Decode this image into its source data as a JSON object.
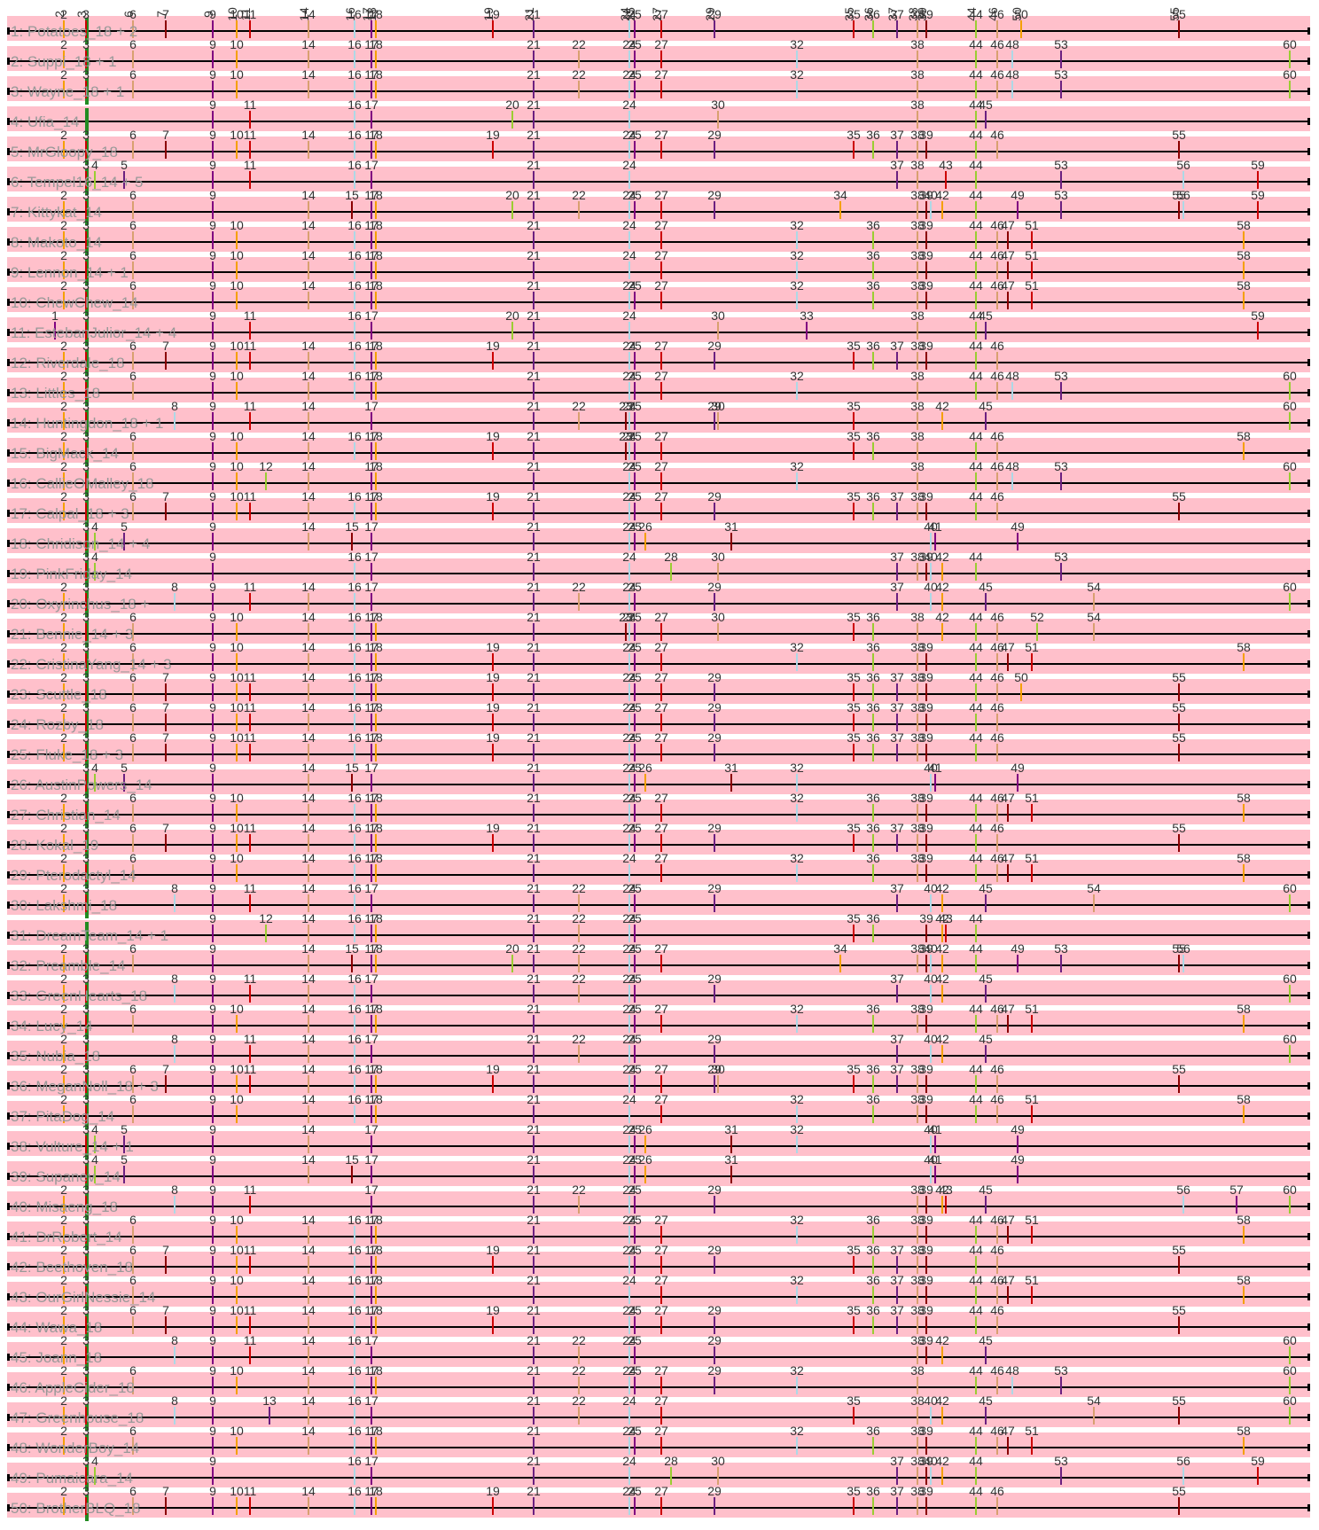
{
  "colors": {
    "band": "#ffc0cb",
    "line": "#000000",
    "gap": "#ffffff",
    "palette": [
      "#cc0000",
      "#f4a000",
      "#800080",
      "#add8e6",
      "#8b0000",
      "#d8a070",
      "#6b2080",
      "#9acd32"
    ],
    "accent_green": "#228b22"
  },
  "chart_data": {
    "type": "track-diagram",
    "rows": [
      {
        "label": "1: Potatoes_18 + 2",
        "ticks": [
          2,
          3,
          6,
          7,
          9,
          10,
          11,
          14,
          16,
          17,
          18,
          19,
          21,
          24,
          25,
          27,
          29,
          35,
          36,
          37,
          38,
          39,
          44,
          46,
          50,
          55
        ]
      },
      {
        "label": "2: Suppi_18 + 1",
        "ticks": [
          2,
          3,
          6,
          9,
          10,
          14,
          16,
          17,
          18,
          21,
          22,
          24,
          25,
          27,
          32,
          38,
          44,
          46,
          48,
          53,
          60
        ]
      },
      {
        "label": "3: Wayne_18 + 1",
        "ticks": [
          2,
          3,
          6,
          9,
          10,
          14,
          16,
          17,
          18,
          21,
          22,
          24,
          25,
          27,
          32,
          38,
          44,
          46,
          48,
          53,
          60
        ]
      },
      {
        "label": "4: Ufia_14",
        "ticks": [
          9,
          11,
          16,
          17,
          20,
          21,
          24,
          30,
          38,
          44,
          45
        ]
      },
      {
        "label": "5: MrGloopy_18",
        "ticks": [
          2,
          3,
          6,
          7,
          9,
          10,
          11,
          14,
          16,
          17,
          18,
          19,
          21,
          24,
          25,
          27,
          29,
          35,
          36,
          37,
          38,
          39,
          44,
          46,
          55
        ]
      },
      {
        "label": "6: Tempel16_14 + 5",
        "ticks": [
          3,
          4,
          5,
          9,
          11,
          16,
          17,
          21,
          24,
          37,
          38,
          43,
          44,
          53,
          56,
          59
        ]
      },
      {
        "label": "7: Kittykat_14",
        "ticks": [
          2,
          3,
          6,
          9,
          14,
          15,
          17,
          18,
          20,
          21,
          22,
          24,
          25,
          27,
          29,
          34,
          38,
          39,
          40,
          42,
          44,
          49,
          53,
          55,
          56,
          59
        ]
      },
      {
        "label": "8: Makoto_14",
        "ticks": [
          2,
          3,
          6,
          9,
          10,
          14,
          16,
          17,
          18,
          21,
          24,
          27,
          32,
          36,
          38,
          39,
          44,
          46,
          47,
          51,
          58
        ]
      },
      {
        "label": "9: Lennon_14 + 1",
        "ticks": [
          2,
          3,
          6,
          9,
          10,
          14,
          16,
          17,
          18,
          21,
          24,
          27,
          32,
          36,
          38,
          39,
          44,
          46,
          47,
          51,
          58
        ]
      },
      {
        "label": "10: ChewChew_14",
        "ticks": [
          2,
          3,
          6,
          9,
          10,
          14,
          16,
          17,
          18,
          21,
          24,
          25,
          27,
          32,
          36,
          38,
          39,
          44,
          46,
          47,
          51,
          58
        ]
      },
      {
        "label": "11: EstebanJulior_14 + 4",
        "ticks": [
          1,
          3,
          9,
          11,
          16,
          17,
          20,
          21,
          24,
          30,
          33,
          38,
          44,
          45,
          59
        ]
      },
      {
        "label": "12: Riverdale_18",
        "ticks": [
          2,
          3,
          6,
          7,
          9,
          10,
          11,
          14,
          16,
          17,
          18,
          19,
          21,
          24,
          25,
          27,
          29,
          35,
          36,
          37,
          38,
          39,
          44,
          46
        ]
      },
      {
        "label": "13: Littles_18",
        "ticks": [
          2,
          3,
          6,
          9,
          10,
          14,
          16,
          17,
          18,
          21,
          24,
          25,
          27,
          32,
          38,
          44,
          46,
          48,
          53,
          60
        ]
      },
      {
        "label": "14: Huntingdon_18 + 1",
        "ticks": [
          2,
          3,
          8,
          9,
          11,
          14,
          17,
          21,
          22,
          23,
          24,
          25,
          29,
          30,
          35,
          38,
          42,
          45,
          60
        ]
      },
      {
        "label": "15: BigMack_14",
        "ticks": [
          2,
          3,
          6,
          9,
          10,
          14,
          16,
          17,
          18,
          19,
          21,
          23,
          24,
          25,
          27,
          35,
          36,
          38,
          44,
          46,
          58
        ]
      },
      {
        "label": "16: CallieOMalley_18",
        "ticks": [
          2,
          3,
          6,
          9,
          10,
          12,
          14,
          17,
          18,
          21,
          24,
          25,
          27,
          32,
          38,
          44,
          46,
          48,
          53,
          60
        ]
      },
      {
        "label": "17: Calpal_18 + 3",
        "ticks": [
          2,
          3,
          6,
          7,
          9,
          10,
          11,
          14,
          16,
          17,
          18,
          19,
          21,
          24,
          25,
          27,
          29,
          35,
          36,
          37,
          38,
          39,
          44,
          46,
          55
        ]
      },
      {
        "label": "18: Chridison_14 + 4",
        "ticks": [
          3,
          4,
          5,
          9,
          14,
          15,
          17,
          21,
          24,
          25,
          26,
          31,
          40,
          41,
          49
        ]
      },
      {
        "label": "19: PinkFriday_14",
        "ticks": [
          3,
          4,
          9,
          16,
          17,
          21,
          24,
          28,
          30,
          37,
          38,
          39,
          40,
          42,
          44,
          53
        ]
      },
      {
        "label": "20: Oxyrinchus_18 +",
        "ticks": [
          2,
          3,
          8,
          9,
          11,
          14,
          16,
          17,
          21,
          22,
          24,
          25,
          29,
          37,
          40,
          42,
          45,
          54,
          60
        ]
      },
      {
        "label": "21: Bennie_14 + 3",
        "ticks": [
          2,
          3,
          6,
          9,
          10,
          14,
          16,
          17,
          18,
          21,
          23,
          24,
          25,
          27,
          30,
          35,
          36,
          38,
          42,
          44,
          46,
          52,
          54
        ]
      },
      {
        "label": "22: CristinaYang_14 + 3",
        "ticks": [
          2,
          3,
          6,
          9,
          10,
          14,
          16,
          17,
          18,
          19,
          21,
          24,
          25,
          27,
          32,
          36,
          38,
          39,
          44,
          46,
          47,
          51,
          58
        ]
      },
      {
        "label": "23: Scuttle_18",
        "ticks": [
          2,
          3,
          6,
          7,
          9,
          10,
          11,
          14,
          16,
          17,
          18,
          19,
          21,
          24,
          25,
          27,
          29,
          35,
          36,
          37,
          38,
          39,
          44,
          46,
          50,
          55
        ]
      },
      {
        "label": "24: Rozby_18",
        "ticks": [
          2,
          3,
          6,
          7,
          9,
          10,
          11,
          14,
          16,
          17,
          18,
          19,
          21,
          24,
          25,
          27,
          29,
          35,
          36,
          37,
          38,
          39,
          44,
          46,
          55
        ]
      },
      {
        "label": "25: Fluke_18 + 3",
        "ticks": [
          2,
          3,
          6,
          7,
          9,
          10,
          11,
          14,
          16,
          17,
          18,
          19,
          21,
          24,
          25,
          27,
          29,
          35,
          36,
          37,
          38,
          39,
          44,
          46,
          55
        ]
      },
      {
        "label": "26: AustinPowers_14",
        "ticks": [
          3,
          4,
          5,
          9,
          14,
          15,
          17,
          21,
          24,
          25,
          26,
          31,
          32,
          40,
          41,
          49
        ]
      },
      {
        "label": "27: Christian_14",
        "ticks": [
          2,
          3,
          6,
          9,
          10,
          14,
          16,
          17,
          18,
          21,
          24,
          25,
          27,
          32,
          36,
          38,
          39,
          44,
          46,
          47,
          51,
          58
        ]
      },
      {
        "label": "28: Kokal_19",
        "ticks": [
          2,
          3,
          6,
          7,
          9,
          10,
          11,
          14,
          16,
          17,
          18,
          19,
          21,
          24,
          25,
          27,
          29,
          35,
          36,
          37,
          38,
          39,
          44,
          46,
          55
        ]
      },
      {
        "label": "29: Pterodactyl_14",
        "ticks": [
          2,
          3,
          6,
          9,
          10,
          14,
          16,
          17,
          18,
          21,
          24,
          27,
          32,
          36,
          38,
          39,
          44,
          46,
          47,
          51,
          58
        ]
      },
      {
        "label": "30: Lakshmi_18",
        "ticks": [
          2,
          3,
          8,
          9,
          11,
          14,
          16,
          17,
          21,
          22,
          24,
          25,
          29,
          37,
          40,
          42,
          45,
          54,
          60
        ]
      },
      {
        "label": "31: DreamTeam_14 + 1",
        "ticks": [
          9,
          12,
          14,
          16,
          17,
          18,
          21,
          22,
          24,
          25,
          35,
          36,
          39,
          42,
          43,
          44
        ]
      },
      {
        "label": "32: Preamble_14",
        "ticks": [
          2,
          3,
          6,
          9,
          14,
          15,
          17,
          18,
          20,
          21,
          22,
          24,
          25,
          27,
          34,
          38,
          39,
          40,
          42,
          44,
          49,
          53,
          55,
          56
        ]
      },
      {
        "label": "33: GreenHearts_18",
        "ticks": [
          2,
          3,
          8,
          9,
          11,
          14,
          16,
          17,
          21,
          22,
          24,
          25,
          29,
          37,
          40,
          42,
          45,
          60
        ]
      },
      {
        "label": "34: Lucy_14",
        "ticks": [
          2,
          3,
          6,
          9,
          10,
          14,
          16,
          17,
          18,
          21,
          24,
          25,
          27,
          32,
          36,
          38,
          39,
          44,
          46,
          47,
          51,
          58
        ]
      },
      {
        "label": "35: Nubia_18",
        "ticks": [
          2,
          3,
          8,
          9,
          11,
          14,
          16,
          17,
          21,
          22,
          24,
          25,
          29,
          37,
          40,
          42,
          45,
          60
        ]
      },
      {
        "label": "36: MeganNoll_18 + 3",
        "ticks": [
          2,
          3,
          6,
          7,
          9,
          10,
          11,
          14,
          16,
          17,
          18,
          19,
          21,
          24,
          25,
          27,
          29,
          30,
          35,
          36,
          37,
          38,
          39,
          44,
          46,
          55
        ]
      },
      {
        "label": "37: PitaDog_14",
        "ticks": [
          2,
          3,
          6,
          9,
          10,
          14,
          16,
          17,
          18,
          21,
          24,
          27,
          32,
          36,
          38,
          39,
          44,
          46,
          51,
          58
        ]
      },
      {
        "label": "38: Vulture_14 + 1",
        "ticks": [
          3,
          4,
          5,
          9,
          14,
          17,
          21,
          24,
          25,
          26,
          31,
          32,
          40,
          41,
          49
        ]
      },
      {
        "label": "39: Supanev_14",
        "ticks": [
          3,
          4,
          5,
          9,
          14,
          15,
          17,
          21,
          24,
          25,
          26,
          31,
          40,
          41,
          49
        ]
      },
      {
        "label": "40: Misaeng_18",
        "ticks": [
          2,
          3,
          8,
          9,
          11,
          17,
          21,
          22,
          24,
          25,
          29,
          38,
          39,
          42,
          43,
          45,
          56,
          57,
          60
        ]
      },
      {
        "label": "41: DrRobert_14",
        "ticks": [
          2,
          3,
          6,
          9,
          10,
          14,
          16,
          17,
          18,
          21,
          24,
          25,
          27,
          32,
          36,
          38,
          39,
          44,
          46,
          47,
          51,
          58
        ]
      },
      {
        "label": "42: Beethoven_18",
        "ticks": [
          2,
          3,
          6,
          7,
          9,
          10,
          11,
          14,
          16,
          17,
          18,
          19,
          21,
          24,
          25,
          27,
          29,
          35,
          36,
          37,
          38,
          39,
          44,
          46,
          55
        ]
      },
      {
        "label": "43: OurGirlNessie_14",
        "ticks": [
          2,
          3,
          6,
          9,
          10,
          14,
          16,
          17,
          18,
          21,
          24,
          27,
          32,
          36,
          37,
          38,
          39,
          44,
          46,
          47,
          51,
          58
        ]
      },
      {
        "label": "44: Wawa_18",
        "ticks": [
          2,
          3,
          6,
          7,
          9,
          10,
          11,
          14,
          16,
          17,
          18,
          19,
          21,
          24,
          25,
          27,
          29,
          35,
          36,
          37,
          38,
          39,
          44,
          46,
          55
        ]
      },
      {
        "label": "45: Joann_18",
        "ticks": [
          2,
          3,
          8,
          9,
          11,
          14,
          16,
          17,
          21,
          22,
          24,
          25,
          29,
          38,
          39,
          42,
          45,
          60
        ]
      },
      {
        "label": "46: AppleCider_18",
        "ticks": [
          2,
          3,
          6,
          9,
          10,
          14,
          16,
          17,
          18,
          21,
          22,
          24,
          25,
          27,
          29,
          32,
          38,
          44,
          46,
          48,
          53,
          60
        ]
      },
      {
        "label": "47: Greenhouse_18",
        "ticks": [
          2,
          3,
          8,
          9,
          13,
          14,
          16,
          17,
          21,
          22,
          24,
          27,
          35,
          38,
          40,
          42,
          45,
          54,
          55,
          60
        ]
      },
      {
        "label": "48: WonderBoy_14",
        "ticks": [
          2,
          3,
          6,
          9,
          10,
          14,
          16,
          17,
          18,
          21,
          24,
          25,
          27,
          32,
          36,
          38,
          39,
          44,
          46,
          47,
          51,
          58
        ]
      },
      {
        "label": "49: Pumaicara_14",
        "ticks": [
          3,
          4,
          9,
          16,
          17,
          21,
          24,
          28,
          30,
          37,
          38,
          39,
          40,
          42,
          44,
          53,
          56,
          59
        ]
      },
      {
        "label": "50: BrotherBLQ_18",
        "ticks": [
          2,
          3,
          6,
          7,
          9,
          10,
          11,
          14,
          16,
          17,
          18,
          19,
          21,
          24,
          25,
          27,
          29,
          35,
          36,
          37,
          38,
          39,
          44,
          46,
          55
        ]
      }
    ]
  }
}
